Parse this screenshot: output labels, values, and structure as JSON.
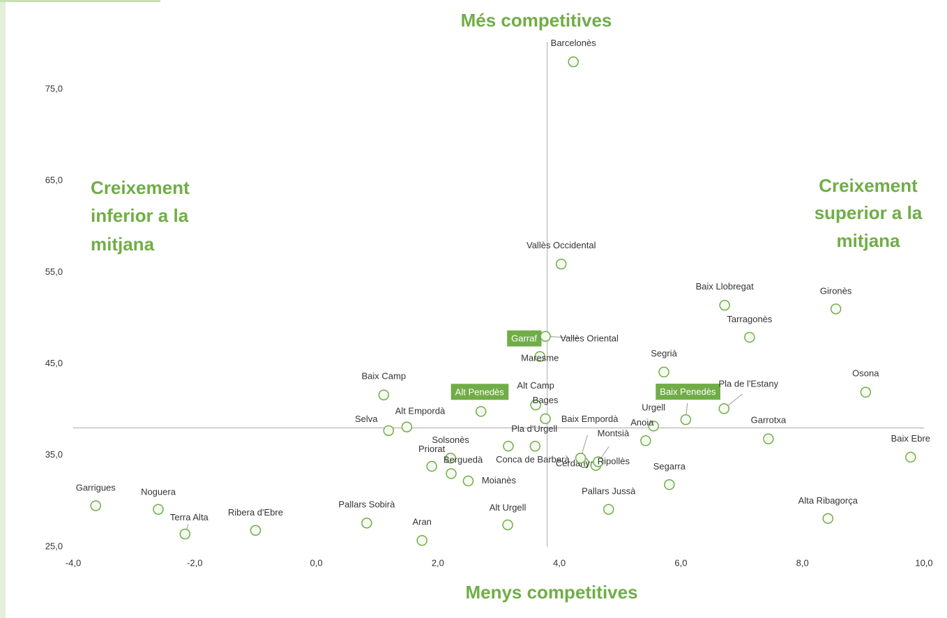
{
  "chart_data": {
    "type": "scatter",
    "top_annotation": "Més competitives",
    "bottom_annotation": "Menys competitives",
    "left_annotation": [
      "Creixement",
      "inferior a la",
      "mitjana"
    ],
    "right_annotation": [
      "Creixement",
      "superior a la",
      "mitjana"
    ],
    "color": "#70ad47",
    "labels": [
      "Barcelonès",
      "Vallès Occidental",
      "Baix Llobregat",
      "Gironès",
      "Tarragonès",
      "Garraf",
      "Vallès Oriental",
      "Maresme",
      "Segrià",
      "Osona",
      "Baix Camp",
      "Alt Penedès",
      "Alt Camp",
      "Bages",
      "Baix Penedès",
      "Pla de l'Estany",
      "Urgell",
      "Anoia",
      "Garrotxa",
      "Baix Ebre",
      "Selva",
      "Alt Empordà",
      "Pla d'Urgell",
      "Solsonès",
      "Conca de Barberà",
      "Cerdanya",
      "Baix Empordà",
      "Montsià",
      "Ripollès",
      "Priorat",
      "Berguedà",
      "Moianès",
      "Segarra",
      "Garrigues",
      "Noguera",
      "Terra Alta",
      "Ribera d'Ebre",
      "Pallars Sobirà",
      "Aran",
      "Alt Urgell",
      "Pallars Jussà",
      "Alta Ribagorça"
    ],
    "x": [
      4.23,
      4.03,
      6.72,
      8.55,
      7.13,
      3.42,
      3.77,
      3.68,
      5.72,
      9.04,
      1.11,
      2.71,
      3.61,
      3.77,
      6.08,
      6.71,
      5.55,
      5.42,
      7.44,
      9.78,
      1.19,
      1.49,
      3.6,
      2.21,
      3.16,
      4.4,
      4.35,
      4.6,
      4.64,
      1.9,
      2.22,
      2.5,
      5.81,
      -3.63,
      -2.6,
      -2.16,
      -1.0,
      0.83,
      1.74,
      3.15,
      4.81,
      8.42
    ],
    "y": [
      78.0,
      55.9,
      51.4,
      51.0,
      47.9,
      48.0,
      48.0,
      45.8,
      44.1,
      41.9,
      41.6,
      39.8,
      40.5,
      39.0,
      38.9,
      40.1,
      38.2,
      36.6,
      36.8,
      34.8,
      37.7,
      38.1,
      36.0,
      34.7,
      36.0,
      34.2,
      34.7,
      33.9,
      34.3,
      33.8,
      33.0,
      32.2,
      31.8,
      29.5,
      29.1,
      26.4,
      26.8,
      27.6,
      25.7,
      27.4,
      29.1,
      28.1
    ],
    "highlight": [
      5,
      11,
      14
    ],
    "reference_lines": {
      "x": 3.8,
      "y": 38.0
    },
    "xlim": [
      -4,
      10
    ],
    "xticks": [
      {
        "value": -4,
        "label": "-4,0"
      },
      {
        "value": -2,
        "label": "-2,0"
      },
      {
        "value": 0,
        "label": "0,0"
      },
      {
        "value": 2,
        "label": "2,0"
      },
      {
        "value": 4,
        "label": "4,0"
      },
      {
        "value": 6,
        "label": "6,0"
      },
      {
        "value": 8,
        "label": "8,0"
      },
      {
        "value": 10,
        "label": "10,0"
      }
    ],
    "ylim": [
      25,
      80
    ],
    "yticks": [
      {
        "value": 25,
        "label": "25,0"
      },
      {
        "value": 35,
        "label": "35,0"
      },
      {
        "value": 45,
        "label": "45,0"
      },
      {
        "value": 55,
        "label": "55,0"
      },
      {
        "value": 65,
        "label": "65,0"
      },
      {
        "value": 75,
        "label": "75,0"
      }
    ]
  }
}
